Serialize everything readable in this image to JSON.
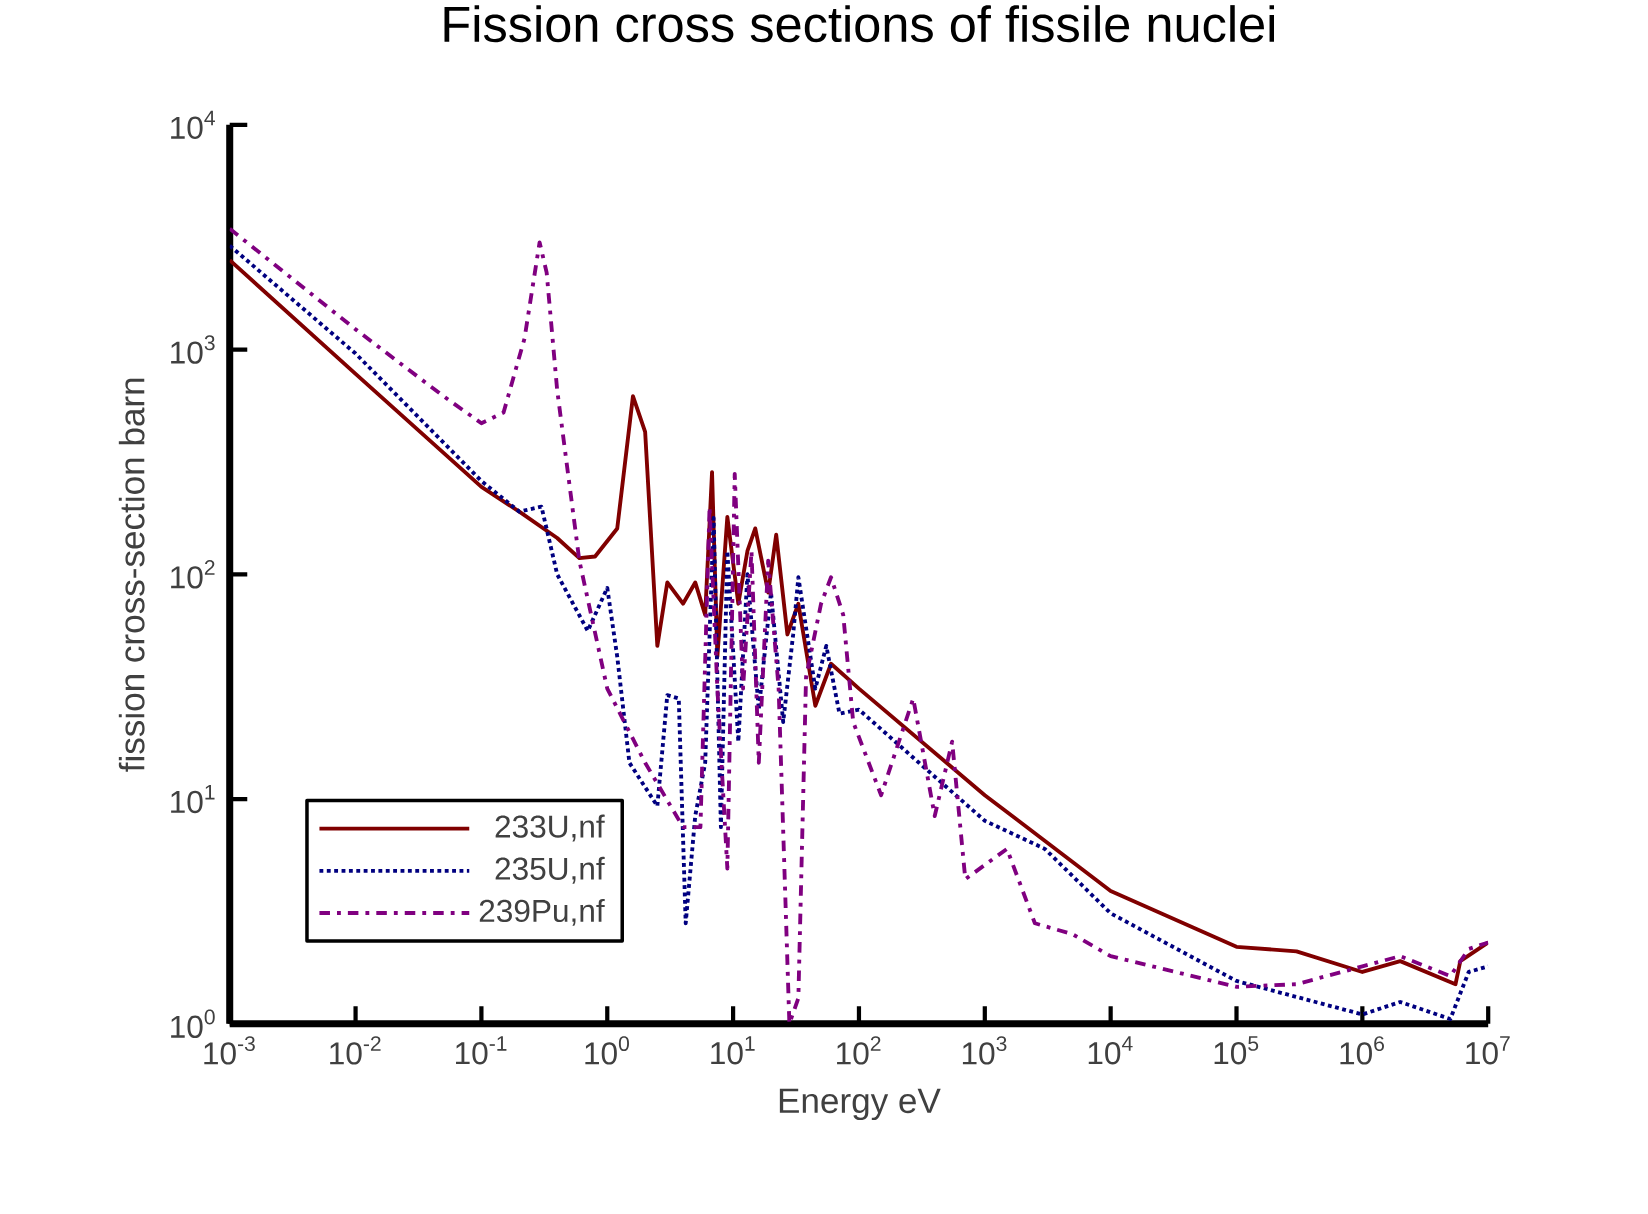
{
  "chart_data": {
    "type": "line",
    "title": "Fission cross sections of fissile nuclei",
    "xlabel": "Energy eV",
    "ylabel": "fission cross-section barn",
    "log": "xy",
    "grid": false,
    "legend": "bottom left",
    "marker": "none",
    "xlim": [
      0.001,
      10000000
    ],
    "ylim": [
      1,
      10000
    ],
    "xticks": [
      {
        "value": 0.001,
        "label": "10$^{-3}$"
      },
      {
        "value": 0.01,
        "label": "10$^{-2}$"
      },
      {
        "value": 0.1,
        "label": "10$^{-1}$"
      },
      {
        "value": 1,
        "label": "10$^{0}$"
      },
      {
        "value": 10,
        "label": "10$^{1}$"
      },
      {
        "value": 100,
        "label": "10$^{2}$"
      },
      {
        "value": 1000,
        "label": "10$^{3}$"
      },
      {
        "value": 10000,
        "label": "10$^{4}$"
      },
      {
        "value": 100000,
        "label": "10$^{5}$"
      },
      {
        "value": 1000000,
        "label": "10$^{6}$"
      },
      {
        "value": 10000000,
        "label": "10$^{7}$"
      }
    ],
    "yticks": [
      {
        "value": 1,
        "label": "10$^{0}$"
      },
      {
        "value": 10,
        "label": "10$^{1}$"
      },
      {
        "value": 100,
        "label": "10$^{2}$"
      },
      {
        "value": 1000,
        "label": "10$^{3}$"
      },
      {
        "value": 10000,
        "label": "10$^{4}$"
      }
    ],
    "series": [
      {
        "name": "233U,nf",
        "color": "#800000",
        "line_style": "solid",
        "x": [
          0.001,
          0.01,
          0.1,
          0.2,
          0.4,
          0.6,
          0.8,
          1.2,
          1.6,
          2.0,
          2.5,
          3.0,
          4,
          5,
          6,
          6.8,
          7.5,
          9,
          11,
          13,
          15,
          19,
          22,
          27,
          33,
          45,
          60,
          100,
          1000,
          10000,
          100000,
          300000,
          1000000,
          2000000,
          5500000,
          6000000,
          10000000
        ],
        "values": [
          2500,
          780,
          245,
          190,
          145,
          118,
          120,
          160,
          620,
          430,
          48,
          92,
          74,
          92,
          66,
          285,
          43,
          180,
          74,
          127,
          160,
          83,
          150,
          54,
          74,
          26,
          40,
          31,
          10.4,
          3.9,
          2.2,
          2.1,
          1.7,
          1.9,
          1.5,
          1.9,
          2.3
        ]
      },
      {
        "name": "235U,nf",
        "color": "#000080",
        "line_style": "dotted",
        "x": [
          0.001,
          0.01,
          0.1,
          0.2,
          0.3,
          0.4,
          0.7,
          1.0,
          1.2,
          1.5,
          2.5,
          3.0,
          3.7,
          4.2,
          5,
          6,
          7,
          8,
          9,
          11,
          13,
          16,
          20,
          25,
          30,
          33,
          45,
          55,
          70,
          100,
          300,
          1000,
          3000,
          10000,
          100000,
          1000000,
          2000000,
          5000000,
          7000000,
          10000000
        ],
        "values": [
          2900,
          960,
          260,
          190,
          200,
          100,
          56,
          87,
          43,
          14.5,
          9.3,
          29,
          28,
          2.8,
          8.4,
          14.5,
          178,
          7.5,
          127,
          18,
          100,
          25,
          83,
          22,
          54,
          97,
          31,
          48,
          24,
          25,
          14.5,
          8,
          6,
          3.1,
          1.55,
          1.1,
          1.25,
          1.05,
          1.7,
          1.8
        ]
      },
      {
        "name": "239Pu,nf",
        "color": "#800080",
        "line_style": "dashdotted",
        "x": [
          0.001,
          0.01,
          0.05,
          0.1,
          0.15,
          0.22,
          0.29,
          0.33,
          0.4,
          0.6,
          1.0,
          2.0,
          4,
          5.5,
          6.5,
          7.5,
          9,
          10.3,
          12,
          14,
          16,
          19,
          23,
          28,
          33,
          38,
          50,
          60,
          75,
          90,
          150,
          270,
          400,
          550,
          700,
          1500,
          2500,
          5000,
          10000,
          100000,
          300000,
          1000000,
          2000000,
          5000000,
          7000000,
          10000000
        ],
        "values": [
          3450,
          1230,
          620,
          470,
          525,
          1120,
          3000,
          2200,
          660,
          115,
          31,
          14.5,
          7.5,
          7.5,
          200,
          31,
          4.9,
          280,
          31,
          127,
          14.5,
          115,
          31,
          1.0,
          1.3,
          35,
          74,
          97,
          66,
          22,
          10.4,
          28,
          8.4,
          18,
          4.4,
          6,
          2.8,
          2.5,
          2.0,
          1.46,
          1.5,
          1.8,
          2.0,
          1.63,
          2.15,
          2.3
        ]
      }
    ]
  }
}
